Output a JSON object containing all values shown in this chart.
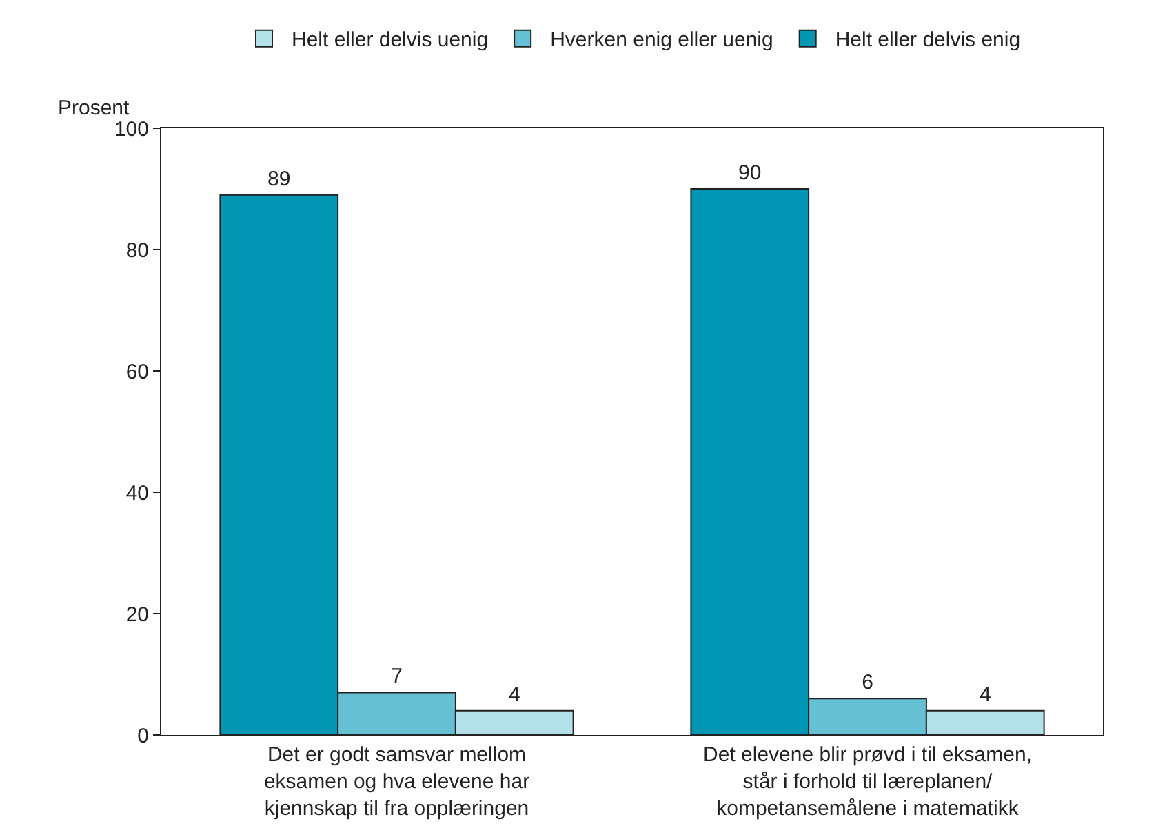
{
  "chart_data": {
    "type": "bar",
    "ylabel": "Prosent",
    "categories": [
      "Det er godt samsvar mellom\neksamen og hva elevene har\nkjennskap til fra opplæringen",
      "Det elevene blir prøvd i til eksamen,\nstår i forhold til læreplanen/\nkompetansemålene i matematikk"
    ],
    "series": [
      {
        "name": "Helt eller delvis enig",
        "color": "#0096b4",
        "values": [
          89,
          90
        ]
      },
      {
        "name": "Hverken enig eller uenig",
        "color": "#66c0d3",
        "values": [
          7,
          6
        ]
      },
      {
        "name": "Helt eller delvis uenig",
        "color": "#b2e1ea",
        "values": [
          4,
          4
        ]
      }
    ],
    "ylim": [
      0,
      100
    ],
    "yticks": [
      0,
      20,
      40,
      60,
      80,
      100
    ],
    "data_labels": true,
    "legend": "top"
  }
}
